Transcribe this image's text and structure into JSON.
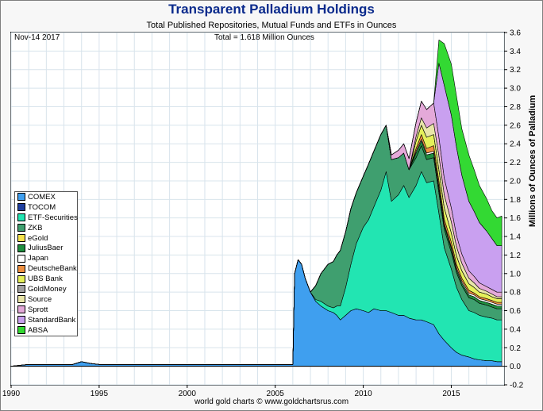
{
  "header": {
    "title": "Transparent Palladium Holdings",
    "subtitle": "Total Published Repositories, Mutual Funds and ETFs in Ounces"
  },
  "annotations": {
    "date": "Nov-14  2017",
    "total": "Total = 1.618 Million Ounces"
  },
  "footer": "world gold charts © www.goldchartsrus.com",
  "chart_data": {
    "type": "area",
    "stacked": true,
    "ylabel": "Millions of Ounces of Palladium",
    "xlim": [
      1990,
      2018
    ],
    "ylim": [
      -0.2,
      3.6
    ],
    "x_ticks": [
      "1990",
      "1995",
      "2000",
      "2005",
      "2010",
      "2015"
    ],
    "y_ticks": [
      "-0.2",
      "0.0",
      "0.2",
      "0.4",
      "0.6",
      "0.8",
      "1.0",
      "1.2",
      "1.4",
      "1.6",
      "1.8",
      "2.0",
      "2.2",
      "2.4",
      "2.6",
      "2.8",
      "3.0",
      "3.2",
      "3.4",
      "3.6"
    ],
    "grid": true,
    "legend_position": "left-bottom",
    "x": [
      1990,
      1991,
      1993.5,
      1994,
      1994.5,
      1995,
      2000,
      2005,
      2006.0,
      2006.1,
      2006.3,
      2006.5,
      2006.7,
      2007,
      2007.3,
      2007.6,
      2008,
      2008.3,
      2008.5,
      2008.7,
      2009,
      2009.3,
      2009.6,
      2010,
      2010.3,
      2010.6,
      2011,
      2011.3,
      2011.6,
      2012,
      2012.3,
      2012.6,
      2013,
      2013.3,
      2013.6,
      2014,
      2014.3,
      2014.6,
      2015,
      2015.3,
      2015.6,
      2016,
      2016.3,
      2016.6,
      2017,
      2017.3,
      2017.6,
      2017.87
    ],
    "series": [
      {
        "name": "COMEX",
        "color": "#3f9fef",
        "values": [
          0,
          0.02,
          0.02,
          0.05,
          0.03,
          0.02,
          0.02,
          0.02,
          0.02,
          1.0,
          1.15,
          1.1,
          0.95,
          0.8,
          0.7,
          0.65,
          0.6,
          0.58,
          0.55,
          0.5,
          0.55,
          0.6,
          0.62,
          0.6,
          0.58,
          0.62,
          0.6,
          0.6,
          0.58,
          0.55,
          0.55,
          0.52,
          0.5,
          0.5,
          0.48,
          0.45,
          0.35,
          0.28,
          0.2,
          0.15,
          0.12,
          0.1,
          0.08,
          0.07,
          0.06,
          0.06,
          0.05,
          0.05
        ]
      },
      {
        "name": "TOCOM",
        "color": "#1f3f9f",
        "values": [
          0,
          0,
          0,
          0,
          0,
          0,
          0,
          0,
          0,
          0,
          0,
          0,
          0,
          0,
          0,
          0,
          0,
          0,
          0,
          0,
          0,
          0,
          0,
          0,
          0,
          0,
          0,
          0,
          0,
          0,
          0,
          0,
          0,
          0,
          0,
          0,
          0,
          0,
          0,
          0,
          0,
          0,
          0,
          0,
          0,
          0,
          0,
          0
        ]
      },
      {
        "name": "ETF-Securities",
        "color": "#22e5b2",
        "values": [
          0,
          0,
          0,
          0,
          0,
          0,
          0,
          0,
          0,
          0,
          0,
          0,
          0,
          0,
          0.02,
          0.05,
          0.05,
          0.05,
          0.1,
          0.15,
          0.3,
          0.5,
          0.7,
          0.9,
          1.0,
          1.1,
          1.3,
          1.5,
          1.2,
          1.3,
          1.4,
          1.3,
          1.45,
          1.6,
          1.5,
          1.55,
          1.3,
          1.0,
          0.85,
          0.7,
          0.6,
          0.5,
          0.5,
          0.48,
          0.47,
          0.46,
          0.45,
          0.45
        ]
      },
      {
        "name": "ZKB",
        "color": "#3f9f6f",
        "values": [
          0,
          0,
          0,
          0,
          0,
          0,
          0,
          0,
          0,
          0,
          0,
          0,
          0,
          0,
          0.15,
          0.3,
          0.45,
          0.5,
          0.55,
          0.6,
          0.6,
          0.6,
          0.55,
          0.55,
          0.6,
          0.6,
          0.6,
          0.5,
          0.45,
          0.4,
          0.35,
          0.3,
          0.3,
          0.28,
          0.25,
          0.25,
          0.22,
          0.2,
          0.18,
          0.16,
          0.15,
          0.14,
          0.14,
          0.13,
          0.13,
          0.12,
          0.12,
          0.12
        ]
      },
      {
        "name": "eGold",
        "color": "#f6e24c",
        "values": [
          0,
          0,
          0,
          0,
          0,
          0,
          0,
          0,
          0,
          0,
          0,
          0,
          0,
          0,
          0,
          0,
          0,
          0,
          0,
          0,
          0,
          0,
          0,
          0,
          0,
          0,
          0,
          0,
          0,
          0,
          0,
          0,
          0,
          0,
          0,
          0,
          0,
          0,
          0,
          0,
          0,
          0,
          0,
          0,
          0,
          0,
          0,
          0
        ]
      },
      {
        "name": "JuliusBaer",
        "color": "#1f8f3f",
        "values": [
          0,
          0,
          0,
          0,
          0,
          0,
          0,
          0,
          0,
          0,
          0,
          0,
          0,
          0,
          0,
          0,
          0,
          0,
          0,
          0,
          0,
          0,
          0,
          0,
          0,
          0,
          0,
          0,
          0,
          0,
          0,
          0,
          0.05,
          0.05,
          0.05,
          0.05,
          0.05,
          0.04,
          0.04,
          0.03,
          0.03,
          0.03,
          0.03,
          0.03,
          0.03,
          0.03,
          0.03,
          0.03
        ]
      },
      {
        "name": "Japan",
        "color": "#ffffff",
        "values": [
          0,
          0,
          0,
          0,
          0,
          0,
          0,
          0,
          0,
          0,
          0,
          0,
          0,
          0,
          0,
          0,
          0,
          0,
          0,
          0,
          0,
          0,
          0,
          0,
          0,
          0,
          0,
          0,
          0,
          0,
          0,
          0,
          0.02,
          0.02,
          0.02,
          0.02,
          0.02,
          0.02,
          0.02,
          0.02,
          0.02,
          0.02,
          0.02,
          0.02,
          0.02,
          0.02,
          0.02,
          0.02
        ]
      },
      {
        "name": "DeutscheBank",
        "color": "#f09040",
        "values": [
          0,
          0,
          0,
          0,
          0,
          0,
          0,
          0,
          0,
          0,
          0,
          0,
          0,
          0,
          0,
          0,
          0,
          0,
          0,
          0,
          0,
          0,
          0,
          0,
          0,
          0,
          0,
          0,
          0,
          0,
          0,
          0,
          0.03,
          0.05,
          0.05,
          0.06,
          0.06,
          0.05,
          0.05,
          0.04,
          0.03,
          0.03,
          0.02,
          0.02,
          0.02,
          0.02,
          0.02,
          0.02
        ]
      },
      {
        "name": "UBS Bank",
        "color": "#e5f05a",
        "values": [
          0,
          0,
          0,
          0,
          0,
          0,
          0,
          0,
          0,
          0,
          0,
          0,
          0,
          0,
          0,
          0,
          0,
          0,
          0,
          0,
          0,
          0,
          0,
          0,
          0,
          0,
          0,
          0,
          0,
          0,
          0,
          0,
          0.08,
          0.1,
          0.12,
          0.12,
          0.12,
          0.12,
          0.1,
          0.09,
          0.08,
          0.07,
          0.06,
          0.05,
          0.05,
          0.04,
          0.04,
          0.04
        ]
      },
      {
        "name": "GoldMoney",
        "color": "#a0a0a0",
        "values": [
          0,
          0,
          0,
          0,
          0,
          0,
          0,
          0,
          0,
          0,
          0,
          0,
          0,
          0,
          0,
          0,
          0,
          0,
          0,
          0,
          0,
          0,
          0,
          0,
          0,
          0,
          0,
          0,
          0,
          0,
          0,
          0,
          0,
          0,
          0,
          0,
          0,
          0,
          0,
          0,
          0,
          0,
          0,
          0,
          0,
          0,
          0,
          0
        ]
      },
      {
        "name": "Source",
        "color": "#e9e6a8",
        "values": [
          0,
          0,
          0,
          0,
          0,
          0,
          0,
          0,
          0,
          0,
          0,
          0,
          0,
          0,
          0,
          0,
          0,
          0,
          0,
          0,
          0,
          0,
          0,
          0,
          0,
          0,
          0,
          0,
          0,
          0,
          0,
          0,
          0.05,
          0.08,
          0.1,
          0.12,
          0.15,
          0.14,
          0.12,
          0.1,
          0.08,
          0.06,
          0.05,
          0.04,
          0.03,
          0.03,
          0.02,
          0.02
        ]
      },
      {
        "name": "Sprott",
        "color": "#e4a9d9",
        "values": [
          0,
          0,
          0,
          0,
          0,
          0,
          0,
          0,
          0,
          0,
          0,
          0,
          0,
          0,
          0,
          0,
          0,
          0,
          0,
          0,
          0,
          0,
          0,
          0,
          0,
          0,
          0,
          0,
          0.05,
          0.08,
          0.1,
          0.12,
          0.15,
          0.18,
          0.2,
          0.22,
          0.2,
          0.18,
          0.15,
          0.12,
          0.1,
          0.08,
          0.07,
          0.06,
          0.05,
          0.05,
          0.05,
          0.05
        ]
      },
      {
        "name": "StandardBank",
        "color": "#c9a0f0",
        "values": [
          0,
          0,
          0,
          0,
          0,
          0,
          0,
          0,
          0,
          0,
          0,
          0,
          0,
          0,
          0,
          0,
          0,
          0,
          0,
          0,
          0,
          0,
          0,
          0,
          0,
          0,
          0,
          0,
          0,
          0,
          0,
          0,
          0,
          0,
          0,
          0,
          0.8,
          1.0,
          1.0,
          0.95,
          0.85,
          0.75,
          0.7,
          0.65,
          0.6,
          0.55,
          0.5,
          0.5
        ]
      },
      {
        "name": "ABSA",
        "color": "#33d933",
        "values": [
          0,
          0,
          0,
          0,
          0,
          0,
          0,
          0,
          0,
          0,
          0,
          0,
          0,
          0,
          0,
          0,
          0,
          0,
          0,
          0,
          0,
          0,
          0,
          0,
          0,
          0,
          0,
          0,
          0,
          0,
          0,
          0,
          0,
          0,
          0,
          0,
          0.25,
          0.45,
          0.55,
          0.55,
          0.5,
          0.5,
          0.45,
          0.4,
          0.35,
          0.3,
          0.3,
          0.32
        ]
      }
    ]
  }
}
